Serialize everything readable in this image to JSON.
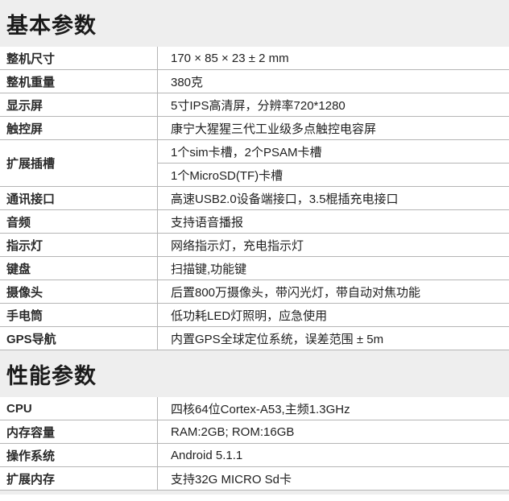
{
  "basic": {
    "title": "基本参数",
    "rows": [
      {
        "label": "整机尺寸",
        "value": "170 × 85 × 23 ± 2 mm"
      },
      {
        "label": "整机重量",
        "value": "380克"
      },
      {
        "label": "显示屏",
        "value": "5寸IPS高清屏，分辨率720*1280"
      },
      {
        "label": "触控屏",
        "value": "康宁大猩猩三代工业级多点触控电容屏"
      },
      {
        "label": "扩展插槽",
        "value": "1个sim卡槽，2个PSAM卡槽",
        "value2": "1个MicroSD(TF)卡槽"
      },
      {
        "label": "通讯接口",
        "value": "高速USB2.0设备端接口，3.5棍插充电接口"
      },
      {
        "label": "音频",
        "value": "支持语音播报"
      },
      {
        "label": "指示灯",
        "value": "网络指示灯，充电指示灯"
      },
      {
        "label": "键盘",
        "value": "扫描键,功能键"
      },
      {
        "label": "摄像头",
        "value": "后置800万摄像头，带闪光灯，带自动对焦功能"
      },
      {
        "label": "手电筒",
        "value": "低功耗LED灯照明，应急使用"
      },
      {
        "label": "GPS导航",
        "value": "内置GPS全球定位系统，误差范围 ± 5m"
      }
    ]
  },
  "performance": {
    "title": "性能参数",
    "rows": [
      {
        "label": "CPU",
        "value": "四核64位Cortex-A53,主频1.3GHz"
      },
      {
        "label": "内存容量",
        "value": "RAM:2GB; ROM:16GB"
      },
      {
        "label": "操作系统",
        "value": "Android 5.1.1"
      },
      {
        "label": "扩展内存",
        "value": "支持32G MICRO Sd卡"
      }
    ]
  }
}
